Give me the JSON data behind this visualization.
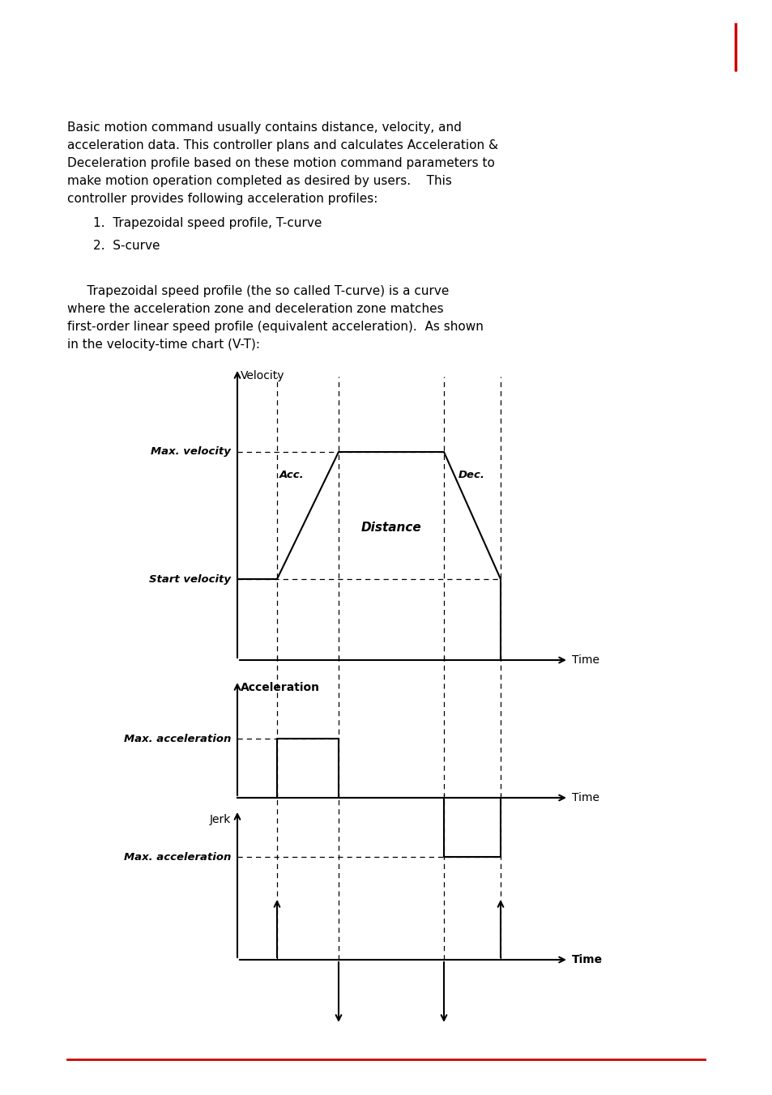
{
  "background_color": "#ffffff",
  "text_color": "#000000",
  "red_color": "#cc0000",
  "line_color": "#000000",
  "para1_lines": [
    "Basic motion command usually contains distance, velocity, and",
    "acceleration data. This controller plans and calculates Acceleration &",
    "Deceleration profile based on these motion command parameters to",
    "make motion operation completed as desired by users.    This",
    "controller provides following acceleration profiles:"
  ],
  "list1": "1.  Trapezoidal speed profile, T-curve",
  "list2": "2.  S-curve",
  "para2_lines": [
    "     Trapezoidal speed profile (the so called T-curve) is a curve",
    "where the acceleration zone and deceleration zone matches",
    "first-order linear speed profile (equivalent acceleration).  As shown",
    "in the velocity-time chart (V-T):"
  ],
  "vel_label": "Velocity",
  "time_label": "Time",
  "max_vel_label": "Max. velocity",
  "start_vel_label": "Start velocity",
  "acc_label_chart": "Acc.",
  "dec_label_chart": "Dec.",
  "distance_label": "Distance",
  "accel_axis_label": "Acceleration",
  "max_acc_label": "Max. acceleration",
  "jerk_label": "Jerk",
  "fig_width": 9.54,
  "fig_height": 13.52,
  "dpi": 100
}
